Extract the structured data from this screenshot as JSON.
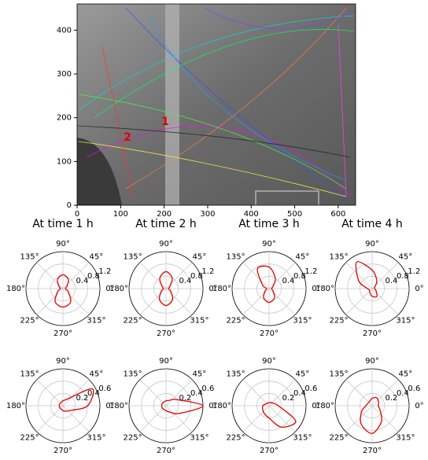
{
  "chart_data": [
    {
      "type": "image",
      "xlim": [
        0,
        640
      ],
      "ylim": [
        0,
        460
      ],
      "xticks": [
        0,
        100,
        200,
        300,
        400,
        500,
        600
      ],
      "yticks": [
        0,
        100,
        200,
        300,
        400
      ],
      "annotations": [
        "1",
        "2"
      ],
      "annotation_color": "#e00000"
    },
    {
      "type": "polar",
      "title": "At time 1 h",
      "color": "#e00000",
      "rlim": [
        0,
        1.2
      ],
      "rticks": [
        0.4,
        0.8,
        1.2
      ],
      "thetaticks": [
        {
          "value": 0,
          "label": "0°"
        },
        {
          "value": 45,
          "label": "45°"
        },
        {
          "value": 90,
          "label": "90°"
        },
        {
          "value": 135,
          "label": "135°"
        },
        {
          "value": 180,
          "label": "180°"
        },
        {
          "value": 225,
          "label": "225°"
        },
        {
          "value": 270,
          "label": "270°"
        },
        {
          "value": 315,
          "label": "315°"
        }
      ],
      "theta": [
        0,
        30,
        60,
        90,
        120,
        150,
        180,
        210,
        240,
        270,
        300,
        330
      ],
      "values": [
        0.08,
        0.15,
        0.35,
        0.45,
        0.35,
        0.15,
        0.08,
        0.2,
        0.5,
        0.6,
        0.5,
        0.2
      ]
    },
    {
      "type": "polar",
      "title": "At time 2 h",
      "color": "#e00000",
      "rlim": [
        0,
        1.2
      ],
      "rticks": [
        0.4,
        0.8,
        1.2
      ],
      "thetaticks": [
        {
          "value": 0,
          "label": "0°"
        },
        {
          "value": 45,
          "label": "45°"
        },
        {
          "value": 90,
          "label": "90°"
        },
        {
          "value": 135,
          "label": "135°"
        },
        {
          "value": 180,
          "label": "180°"
        },
        {
          "value": 225,
          "label": "225°"
        },
        {
          "value": 270,
          "label": "270°"
        },
        {
          "value": 315,
          "label": "315°"
        }
      ],
      "theta": [
        0,
        30,
        60,
        90,
        120,
        150,
        180,
        210,
        240,
        270,
        300,
        330
      ],
      "values": [
        0.08,
        0.15,
        0.4,
        0.55,
        0.4,
        0.15,
        0.08,
        0.18,
        0.42,
        0.55,
        0.42,
        0.18
      ]
    },
    {
      "type": "polar",
      "title": "At time 3 h",
      "color": "#e00000",
      "rlim": [
        0,
        1.2
      ],
      "rticks": [
        0.4,
        0.8,
        1.2
      ],
      "thetaticks": [
        {
          "value": 0,
          "label": "0°"
        },
        {
          "value": 45,
          "label": "45°"
        },
        {
          "value": 90,
          "label": "90°"
        },
        {
          "value": 135,
          "label": "135°"
        },
        {
          "value": 180,
          "label": "180°"
        },
        {
          "value": 225,
          "label": "225°"
        },
        {
          "value": 270,
          "label": "270°"
        },
        {
          "value": 315,
          "label": "315°"
        }
      ],
      "theta": [
        0,
        30,
        60,
        90,
        120,
        150,
        180,
        210,
        240,
        270,
        300,
        330
      ],
      "values": [
        0.08,
        0.15,
        0.4,
        0.7,
        0.75,
        0.25,
        0.08,
        0.15,
        0.35,
        0.45,
        0.35,
        0.15
      ]
    },
    {
      "type": "polar",
      "title": "At time 4 h",
      "color": "#e00000",
      "rlim": [
        0,
        1.2
      ],
      "rticks": [
        0.4,
        0.8,
        1.2
      ],
      "thetaticks": [
        {
          "value": 0,
          "label": "0°"
        },
        {
          "value": 45,
          "label": "45°"
        },
        {
          "value": 90,
          "label": "90°"
        },
        {
          "value": 135,
          "label": "135°"
        },
        {
          "value": 180,
          "label": "180°"
        },
        {
          "value": 225,
          "label": "225°"
        },
        {
          "value": 270,
          "label": "270°"
        },
        {
          "value": 315,
          "label": "315°"
        }
      ],
      "theta": [
        0,
        30,
        60,
        90,
        120,
        150,
        180,
        210,
        240,
        270,
        300,
        330
      ],
      "values": [
        0.08,
        0.1,
        0.3,
        0.6,
        1.0,
        0.5,
        0.15,
        0.1,
        0.15,
        0.25,
        0.3,
        0.15
      ]
    },
    {
      "type": "polar",
      "color": "#e00000",
      "rlim": [
        0,
        0.6
      ],
      "rticks": [
        0.2,
        0.4,
        0.6
      ],
      "thetaticks": [
        {
          "value": 0,
          "label": "0°"
        },
        {
          "value": 45,
          "label": "45°"
        },
        {
          "value": 90,
          "label": "90°"
        },
        {
          "value": 135,
          "label": "135°"
        },
        {
          "value": 180,
          "label": "180°"
        },
        {
          "value": 225,
          "label": "225°"
        },
        {
          "value": 270,
          "label": "270°"
        },
        {
          "value": 315,
          "label": "315°"
        }
      ],
      "theta": [
        0,
        30,
        60,
        90,
        120,
        150,
        180,
        210,
        240,
        270,
        300,
        330
      ],
      "values": [
        0.4,
        0.55,
        0.12,
        0.08,
        0.06,
        0.06,
        0.06,
        0.06,
        0.06,
        0.08,
        0.1,
        0.15
      ]
    },
    {
      "type": "polar",
      "color": "#e00000",
      "rlim": [
        0,
        0.6
      ],
      "rticks": [
        0.2,
        0.4,
        0.6
      ],
      "thetaticks": [
        {
          "value": 0,
          "label": "0°"
        },
        {
          "value": 45,
          "label": "45°"
        },
        {
          "value": 90,
          "label": "90°"
        },
        {
          "value": 135,
          "label": "135°"
        },
        {
          "value": 180,
          "label": "180°"
        },
        {
          "value": 225,
          "label": "225°"
        },
        {
          "value": 270,
          "label": "270°"
        },
        {
          "value": 315,
          "label": "315°"
        }
      ],
      "theta": [
        0,
        30,
        60,
        90,
        120,
        150,
        180,
        210,
        240,
        270,
        300,
        330
      ],
      "values": [
        0.6,
        0.2,
        0.1,
        0.08,
        0.07,
        0.07,
        0.07,
        0.07,
        0.07,
        0.08,
        0.12,
        0.25
      ]
    },
    {
      "type": "polar",
      "color": "#e00000",
      "rlim": [
        0,
        0.6
      ],
      "rticks": [
        0.2,
        0.4,
        0.6
      ],
      "thetaticks": [
        {
          "value": 0,
          "label": "0°"
        },
        {
          "value": 45,
          "label": "45°"
        },
        {
          "value": 90,
          "label": "90°"
        },
        {
          "value": 135,
          "label": "135°"
        },
        {
          "value": 180,
          "label": "180°"
        },
        {
          "value": 225,
          "label": "225°"
        },
        {
          "value": 270,
          "label": "270°"
        },
        {
          "value": 315,
          "label": "315°"
        }
      ],
      "theta": [
        0,
        30,
        60,
        90,
        120,
        150,
        180,
        210,
        240,
        270,
        300,
        330
      ],
      "values": [
        0.15,
        0.08,
        0.06,
        0.05,
        0.05,
        0.06,
        0.1,
        0.12,
        0.15,
        0.2,
        0.4,
        0.5
      ]
    },
    {
      "type": "polar",
      "color": "#e00000",
      "rlim": [
        0,
        0.6
      ],
      "rticks": [
        0.2,
        0.4,
        0.6
      ],
      "thetaticks": [
        {
          "value": 0,
          "label": "0°"
        },
        {
          "value": 45,
          "label": "45°"
        },
        {
          "value": 90,
          "label": "90°"
        },
        {
          "value": 135,
          "label": "135°"
        },
        {
          "value": 180,
          "label": "180°"
        },
        {
          "value": 225,
          "label": "225°"
        },
        {
          "value": 270,
          "label": "270°"
        },
        {
          "value": 315,
          "label": "315°"
        }
      ],
      "theta": [
        0,
        30,
        60,
        90,
        120,
        150,
        180,
        210,
        240,
        270,
        300,
        330
      ],
      "values": [
        0.1,
        0.12,
        0.15,
        0.12,
        0.08,
        0.08,
        0.1,
        0.2,
        0.35,
        0.45,
        0.3,
        0.15
      ]
    }
  ]
}
